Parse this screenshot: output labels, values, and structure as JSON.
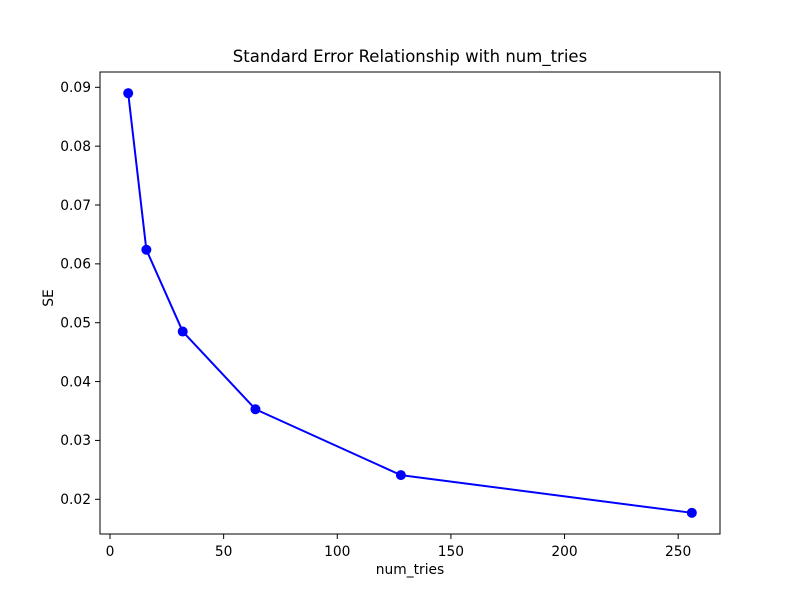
{
  "figure": {
    "background": "#ffffff"
  },
  "chart_data": {
    "type": "line",
    "title": "Standard Error Relationship with num_tries",
    "xlabel": "num_tries",
    "ylabel": "SE",
    "series": [
      {
        "name": "SE vs num_tries",
        "x": [
          8,
          16,
          32,
          64,
          128,
          256
        ],
        "y": [
          0.089,
          0.0624,
          0.0485,
          0.0353,
          0.0241,
          0.0177
        ],
        "color": "#0000ff",
        "marker": "circle",
        "marker_radius": 5,
        "line_width": 2
      }
    ],
    "xticks": [
      0,
      50,
      100,
      150,
      200,
      250
    ],
    "xtick_labels": [
      "0",
      "50",
      "100",
      "150",
      "200",
      "250"
    ],
    "yticks": [
      0.02,
      0.03,
      0.04,
      0.05,
      0.06,
      0.07,
      0.08,
      0.09
    ],
    "ytick_labels": [
      "0.02",
      "0.03",
      "0.04",
      "0.05",
      "0.06",
      "0.07",
      "0.08",
      "0.09"
    ],
    "xlim": [
      -4.4,
      268.4
    ],
    "ylim": [
      0.0141,
      0.0926
    ],
    "grid": false,
    "legend": null,
    "background": "#ffffff",
    "axis_color": "#000000",
    "text_color": "#000000"
  }
}
